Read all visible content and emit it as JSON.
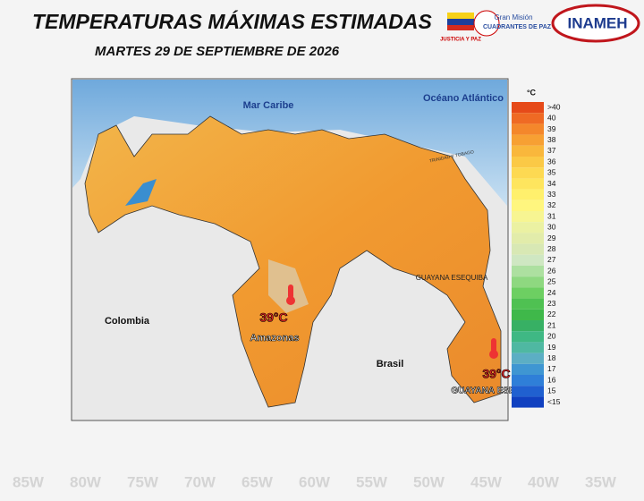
{
  "header": {
    "title": "TEMPERATURAS MÁXIMAS ESTIMADAS",
    "subtitle": "MARTES 29 DE SEPTIEMBRE DE 2026"
  },
  "logos": {
    "justicia": "JUSTICIA Y PAZ",
    "mision_top": "Gran Misión",
    "mision_bottom": "CUADRANTES DE PAZ",
    "inameh": "INAMEH"
  },
  "map": {
    "labels": {
      "sea": "Mar Caribe",
      "ocean": "Océano Atlántico",
      "colombia": "Colombia",
      "brasil": "Brasil",
      "esequiba": "GUAYANA ESEQUIBA",
      "trinidad": "TRINIDAD Y TOBAGO"
    },
    "callouts": [
      {
        "temp": "39°C",
        "place": "Amazonas"
      },
      {
        "temp": "39°C",
        "place": "GUAYANA ESEQUIBA"
      }
    ]
  },
  "legend": {
    "unit": "°C",
    "entries": [
      {
        "label": ">40",
        "color": "#e64a19"
      },
      {
        "label": "40",
        "color": "#ef6a24"
      },
      {
        "label": "39",
        "color": "#f4872b"
      },
      {
        "label": "38",
        "color": "#f7a033"
      },
      {
        "label": "37",
        "color": "#f9b73c"
      },
      {
        "label": "36",
        "color": "#fbc946"
      },
      {
        "label": "35",
        "color": "#fdd952"
      },
      {
        "label": "34",
        "color": "#fee55e"
      },
      {
        "label": "33",
        "color": "#fff06c"
      },
      {
        "label": "32",
        "color": "#fff67e"
      },
      {
        "label": "31",
        "color": "#f7f592"
      },
      {
        "label": "30",
        "color": "#ebf1a2"
      },
      {
        "label": "29",
        "color": "#e2ecaa"
      },
      {
        "label": "28",
        "color": "#d8e8b4"
      },
      {
        "label": "27",
        "color": "#cfe7c2"
      },
      {
        "label": "26",
        "color": "#ade0a0"
      },
      {
        "label": "25",
        "color": "#8ed880"
      },
      {
        "label": "24",
        "color": "#6dcf62"
      },
      {
        "label": "23",
        "color": "#4fc152"
      },
      {
        "label": "22",
        "color": "#3fb84a"
      },
      {
        "label": "21",
        "color": "#37b064"
      },
      {
        "label": "20",
        "color": "#3fb884"
      },
      {
        "label": "19",
        "color": "#4fb8a2"
      },
      {
        "label": "18",
        "color": "#5caec4"
      },
      {
        "label": "17",
        "color": "#3f96d2"
      },
      {
        "label": "16",
        "color": "#2f7fd8"
      },
      {
        "label": "15",
        "color": "#2060d0"
      },
      {
        "label": "<15",
        "color": "#1040c0"
      }
    ]
  },
  "background": {
    "longitudes": [
      "85W",
      "80W",
      "75W",
      "70W",
      "65W",
      "60W",
      "55W",
      "50W",
      "45W",
      "40W",
      "35W"
    ]
  }
}
